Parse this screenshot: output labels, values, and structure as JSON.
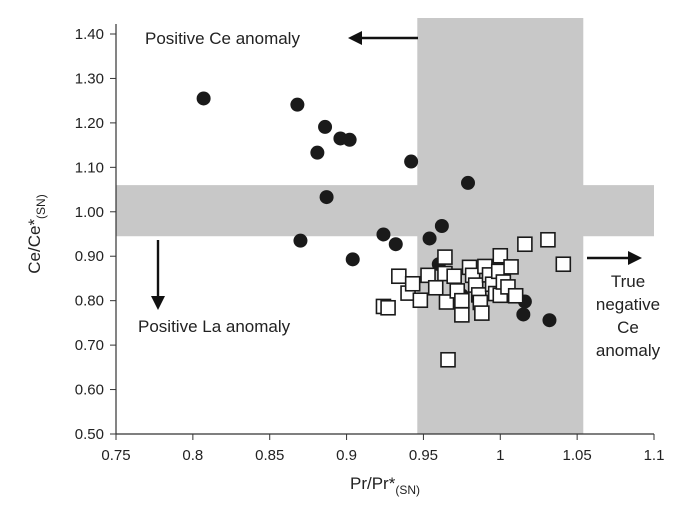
{
  "chart_data": {
    "type": "scatter",
    "xlabel": {
      "main": "Pr/Pr*",
      "sub": "(SN)"
    },
    "ylabel": {
      "main": "Ce/Ce*",
      "sub": "(SN)"
    },
    "xlim": [
      0.75,
      1.1
    ],
    "ylim": [
      0.5,
      1.4
    ],
    "x_ticks": [
      "0.75",
      "0.8",
      "0.85",
      "0.9",
      "0.95",
      "1",
      "1.05",
      "1.1"
    ],
    "y_ticks": [
      "0.50",
      "0.60",
      "0.70",
      "0.80",
      "0.90",
      "1.00",
      "1.10",
      "1.20",
      "1.30",
      "1.40"
    ],
    "grid": false,
    "bands": {
      "vertical": {
        "x": [
          0.946,
          1.054
        ],
        "color": "#c8c8c8"
      },
      "horizontal": {
        "y": [
          0.945,
          1.06
        ],
        "color": "#c8c8c8"
      }
    },
    "annotations": [
      {
        "text": "Positive Ce anomaly"
      },
      {
        "text": "Positive La anomaly"
      },
      {
        "lines": [
          "True",
          "negative",
          "Ce",
          "anomaly"
        ]
      }
    ],
    "series": [
      {
        "marker": "filled-circle",
        "color": "#1a1a1a",
        "points": [
          [
            0.807,
            1.255
          ],
          [
            0.868,
            1.241
          ],
          [
            0.886,
            1.191
          ],
          [
            0.881,
            1.133
          ],
          [
            0.896,
            1.165
          ],
          [
            0.902,
            1.162
          ],
          [
            0.942,
            1.113
          ],
          [
            0.979,
            1.065
          ],
          [
            0.887,
            1.033
          ],
          [
            0.87,
            0.935
          ],
          [
            0.924,
            0.949
          ],
          [
            0.932,
            0.927
          ],
          [
            0.904,
            0.893
          ],
          [
            0.954,
            0.94
          ],
          [
            0.962,
            0.968
          ],
          [
            0.96,
            0.882
          ],
          [
            1.016,
            0.798
          ],
          [
            1.015,
            0.769
          ],
          [
            1.032,
            0.756
          ],
          [
            0.975,
            0.812
          ]
        ]
      },
      {
        "marker": "open-square",
        "color": "#1a1a1a",
        "points": [
          [
            0.924,
            0.787
          ],
          [
            0.927,
            0.784
          ],
          [
            0.934,
            0.855
          ],
          [
            0.94,
            0.817
          ],
          [
            0.943,
            0.838
          ],
          [
            0.948,
            0.801
          ],
          [
            0.953,
            0.857
          ],
          [
            0.958,
            0.829
          ],
          [
            0.964,
            0.898
          ],
          [
            0.964,
            0.861
          ],
          [
            0.965,
            0.797
          ],
          [
            0.966,
            0.667
          ],
          [
            0.97,
            0.855
          ],
          [
            0.972,
            0.822
          ],
          [
            0.975,
            0.8
          ],
          [
            0.975,
            0.768
          ],
          [
            0.98,
            0.875
          ],
          [
            0.982,
            0.857
          ],
          [
            0.984,
            0.835
          ],
          [
            0.986,
            0.813
          ],
          [
            0.987,
            0.796
          ],
          [
            0.988,
            0.772
          ],
          [
            0.99,
            0.877
          ],
          [
            0.993,
            0.858
          ],
          [
            0.995,
            0.837
          ],
          [
            0.997,
            0.816
          ],
          [
            0.999,
            0.866
          ],
          [
            1.0,
            0.901
          ],
          [
            1.0,
            0.812
          ],
          [
            1.002,
            0.842
          ],
          [
            1.005,
            0.831
          ],
          [
            1.007,
            0.876
          ],
          [
            1.01,
            0.811
          ],
          [
            1.016,
            0.927
          ],
          [
            1.031,
            0.937
          ],
          [
            1.041,
            0.882
          ]
        ]
      }
    ]
  }
}
